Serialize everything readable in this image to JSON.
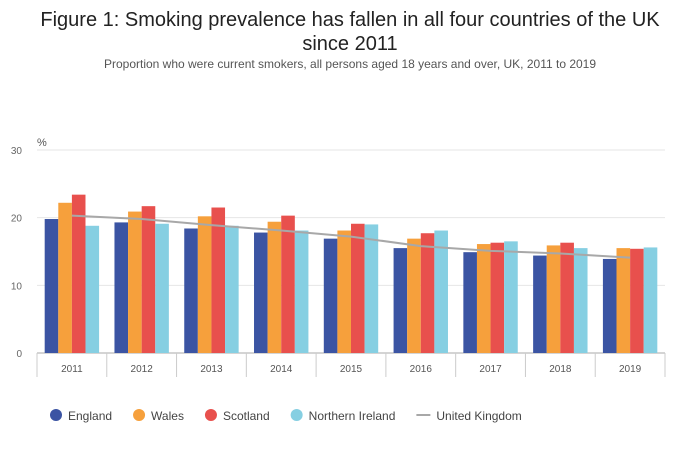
{
  "chart_data": {
    "type": "bar",
    "title": "Figure 1: Smoking prevalence has fallen in all four countries of the UK since 2011",
    "subtitle": "Proportion who were current smokers, all persons aged 18 years and over, UK, 2011 to 2019",
    "ylabel": "%",
    "xlabel": "",
    "ylim": [
      0,
      30
    ],
    "yticks": [
      0,
      10,
      20,
      30
    ],
    "grid": true,
    "legend_position": "bottom",
    "categories": [
      "2011",
      "2012",
      "2013",
      "2014",
      "2015",
      "2016",
      "2017",
      "2018",
      "2019"
    ],
    "series": [
      {
        "name": "England",
        "type": "bar",
        "color": "#3b54a3",
        "values": [
          19.8,
          19.3,
          18.4,
          17.8,
          16.9,
          15.5,
          14.9,
          14.4,
          13.9
        ]
      },
      {
        "name": "Wales",
        "type": "bar",
        "color": "#f6a03c",
        "values": [
          22.2,
          20.9,
          20.2,
          19.4,
          18.1,
          16.9,
          16.1,
          15.9,
          15.5
        ]
      },
      {
        "name": "Scotland",
        "type": "bar",
        "color": "#e8504d",
        "values": [
          23.4,
          21.7,
          21.5,
          20.3,
          19.1,
          17.7,
          16.3,
          16.3,
          15.4
        ]
      },
      {
        "name": "Northern Ireland",
        "type": "bar",
        "color": "#86cfe2",
        "values": [
          18.8,
          19.1,
          18.8,
          18.1,
          19.0,
          18.1,
          16.5,
          15.5,
          15.6
        ]
      },
      {
        "name": "United Kingdom",
        "type": "line",
        "color": "#a8a8a8",
        "values": [
          20.3,
          19.8,
          18.9,
          18.1,
          17.2,
          15.8,
          15.1,
          14.7,
          14.1
        ]
      }
    ]
  }
}
